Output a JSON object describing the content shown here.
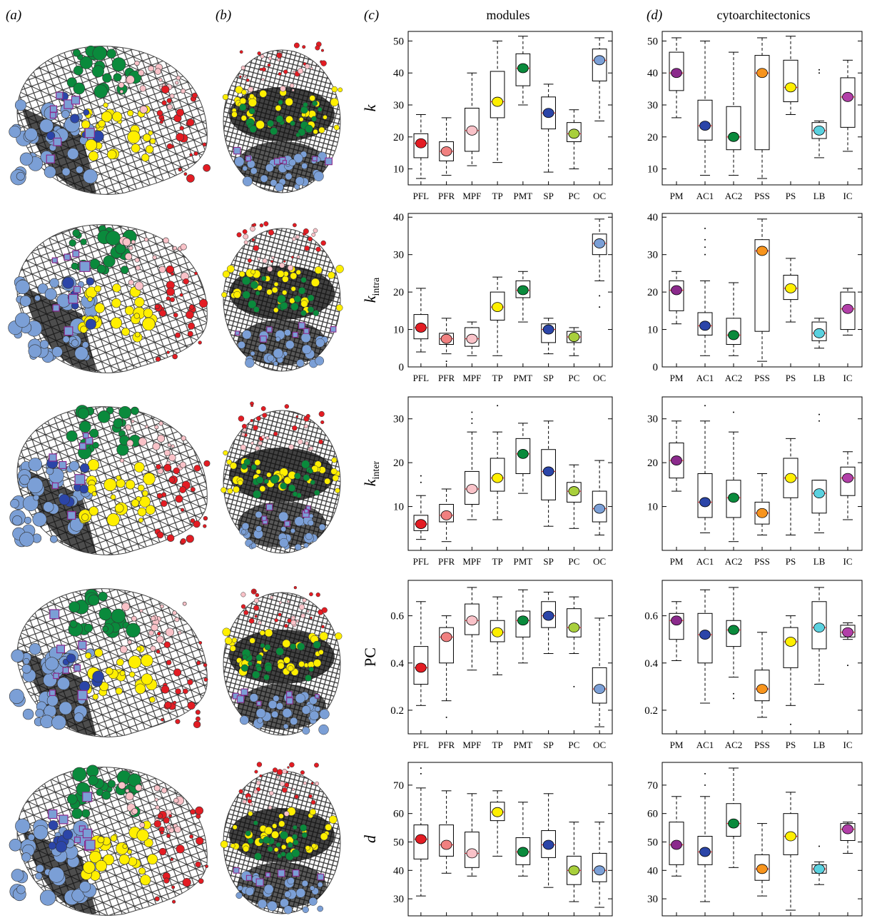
{
  "panel_letters": [
    "(a)",
    "(b)",
    "(c)",
    "(d)"
  ],
  "columns": {
    "c_title": "modules",
    "d_title": "cytoarchitectonics"
  },
  "colors": {
    "PFL": "#e31c23",
    "PFR": "#f08080",
    "MPF": "#f9c2c8",
    "TP": "#ffef00",
    "PMT": "#0a8a3c",
    "SP": "#2b45a8",
    "PC": "#a8cf3c",
    "OC": "#7b9fd6",
    "PM": "#8b2a8c",
    "AC1": "#2b45a8",
    "AC2": "#0a8a3c",
    "PSS": "#f7941d",
    "PS": "#ffef00",
    "LB": "#5ad1df",
    "IC": "#b23fa8",
    "median": "#e31c23"
  },
  "chart_data": [
    {
      "type": "box",
      "panel": "c",
      "row": 0,
      "ylabel": "k",
      "ylabel_sub": "",
      "ylim": [
        5,
        53
      ],
      "yticks": [
        10,
        20,
        30,
        40,
        50
      ],
      "categories": [
        "PFL",
        "PFR",
        "MPF",
        "TP",
        "PMT",
        "SP",
        "PC",
        "OC"
      ],
      "stats": [
        [
          7,
          13.5,
          18,
          21,
          27
        ],
        [
          8,
          12.5,
          15.5,
          18.5,
          26
        ],
        [
          11,
          15.5,
          22,
          29,
          40
        ],
        [
          12,
          26,
          31,
          40.5,
          50
        ],
        [
          30,
          36,
          41.5,
          46,
          51.5
        ],
        [
          9,
          22.5,
          27.5,
          32.5,
          36.5
        ],
        [
          10,
          18.5,
          21,
          24.5,
          28.5
        ],
        [
          25,
          37.5,
          44,
          47.5,
          51
        ]
      ]
    },
    {
      "type": "box",
      "panel": "d",
      "row": 0,
      "ylabel": "",
      "ylabel_sub": "",
      "ylim": [
        5,
        53
      ],
      "yticks": [
        10,
        20,
        30,
        40,
        50
      ],
      "categories": [
        "PM",
        "AC1",
        "AC2",
        "PSS",
        "PS",
        "LB",
        "IC"
      ],
      "stats": [
        [
          26,
          34.5,
          40,
          46.5,
          51
        ],
        [
          8,
          19,
          23.5,
          31.5,
          50
        ],
        [
          8,
          16,
          20,
          29.5,
          46.5
        ],
        [
          7,
          16,
          40,
          45.5,
          51
        ],
        [
          27,
          31,
          35.5,
          44,
          51.5
        ],
        [
          13.5,
          19.5,
          22,
          24.5,
          25
        ],
        [
          15.5,
          23,
          32.5,
          38.5,
          44
        ]
      ],
      "outliers": [
        [],
        [],
        [],
        [],
        [],
        [
          40,
          41
        ],
        []
      ]
    },
    {
      "type": "box",
      "panel": "c",
      "row": 1,
      "ylabel": "k",
      "ylabel_sub": "intra",
      "ylim": [
        0,
        41
      ],
      "yticks": [
        0,
        10,
        20,
        30,
        40
      ],
      "categories": [
        "PFL",
        "PFR",
        "MPF",
        "TP",
        "PMT",
        "SP",
        "PC",
        "OC"
      ],
      "stats": [
        [
          4,
          7.5,
          10.5,
          14,
          21
        ],
        [
          3.5,
          6,
          7.5,
          9,
          13
        ],
        [
          3,
          5.5,
          7.5,
          10.5,
          12
        ],
        [
          3,
          12.5,
          16,
          20,
          24
        ],
        [
          12,
          18.5,
          20.5,
          23,
          25.5
        ],
        [
          3.5,
          6.5,
          10,
          11.5,
          13
        ],
        [
          3,
          6.5,
          8,
          9.5,
          10.5
        ],
        [
          23,
          30,
          33,
          35.5,
          39.5
        ]
      ],
      "outliers": [
        [],
        [
          1.5
        ],
        [],
        [],
        [],
        [],
        [],
        [
          16,
          19
        ]
      ]
    },
    {
      "type": "box",
      "panel": "d",
      "row": 1,
      "ylabel": "",
      "ylabel_sub": "",
      "ylim": [
        0,
        41
      ],
      "yticks": [
        0,
        10,
        20,
        30,
        40
      ],
      "categories": [
        "PM",
        "AC1",
        "AC2",
        "PSS",
        "PS",
        "LB",
        "IC"
      ],
      "stats": [
        [
          11.5,
          15,
          20.5,
          23,
          25.5
        ],
        [
          3,
          8.5,
          11,
          14.5,
          23
        ],
        [
          3,
          6,
          8.5,
          13,
          22.5
        ],
        [
          1.5,
          9.5,
          31,
          34,
          39.5
        ],
        [
          12,
          18,
          21,
          24.5,
          29
        ],
        [
          5,
          7,
          9,
          12,
          13
        ],
        [
          8.5,
          10,
          15.5,
          20,
          21
        ]
      ],
      "outliers": [
        [],
        [
          30,
          32,
          34,
          37
        ],
        [],
        [],
        [],
        [],
        []
      ]
    },
    {
      "type": "box",
      "panel": "c",
      "row": 2,
      "ylabel": "k",
      "ylabel_sub": "inter",
      "ylim": [
        0,
        35
      ],
      "yticks": [
        10,
        20,
        30
      ],
      "categories": [
        "PFL",
        "PFR",
        "MPF",
        "TP",
        "PMT",
        "SP",
        "PC",
        "OC"
      ],
      "stats": [
        [
          2.5,
          4.5,
          6,
          8,
          12.5
        ],
        [
          2,
          6.5,
          8,
          10.5,
          14
        ],
        [
          7,
          10.5,
          14,
          18,
          27
        ],
        [
          7,
          13.5,
          16.5,
          21,
          27
        ],
        [
          13,
          17.5,
          22,
          25.5,
          29
        ],
        [
          5.5,
          11.5,
          18,
          23,
          29.5
        ],
        [
          5,
          11,
          13.5,
          15.5,
          19.5
        ],
        [
          3.5,
          6.5,
          9.5,
          13.5,
          20.5
        ]
      ],
      "outliers": [
        [
          15.5,
          17
        ],
        [],
        [
          29,
          30,
          31.5
        ],
        [
          33
        ],
        [],
        [],
        [],
        []
      ]
    },
    {
      "type": "box",
      "panel": "d",
      "row": 2,
      "ylabel": "",
      "ylabel_sub": "",
      "ylim": [
        0,
        35
      ],
      "yticks": [
        10,
        20,
        30
      ],
      "categories": [
        "PM",
        "AC1",
        "AC2",
        "PSS",
        "PS",
        "LB",
        "IC"
      ],
      "stats": [
        [
          13.5,
          16.5,
          20.5,
          24.5,
          29.5
        ],
        [
          4,
          7.5,
          11,
          17.5,
          29.5
        ],
        [
          2,
          7.5,
          12,
          16,
          27
        ],
        [
          3.5,
          6,
          8.5,
          11,
          17.5
        ],
        [
          3.5,
          12,
          16.5,
          21,
          25.5
        ],
        [
          4,
          8.5,
          13,
          16,
          16
        ],
        [
          7,
          12.5,
          16.5,
          19,
          22.5
        ]
      ],
      "outliers": [
        [],
        [
          33
        ],
        [
          31.5
        ],
        [],
        [],
        [
          29.5,
          31
        ],
        []
      ]
    },
    {
      "type": "box",
      "panel": "c",
      "row": 3,
      "ylabel": "PC",
      "ylabel_sub": "",
      "ylim": [
        0.1,
        0.75
      ],
      "yticks": [
        0.2,
        0.4,
        0.6
      ],
      "categories": [
        "PFL",
        "PFR",
        "MPF",
        "TP",
        "PMT",
        "SP",
        "PC",
        "OC"
      ],
      "stats": [
        [
          0.22,
          0.31,
          0.38,
          0.47,
          0.66
        ],
        [
          0.24,
          0.4,
          0.51,
          0.55,
          0.6
        ],
        [
          0.37,
          0.52,
          0.58,
          0.65,
          0.72
        ],
        [
          0.35,
          0.49,
          0.53,
          0.58,
          0.68
        ],
        [
          0.4,
          0.51,
          0.58,
          0.62,
          0.71
        ],
        [
          0.44,
          0.55,
          0.6,
          0.66,
          0.7
        ],
        [
          0.44,
          0.51,
          0.55,
          0.63,
          0.68
        ],
        [
          0.13,
          0.23,
          0.29,
          0.38,
          0.59
        ]
      ],
      "outliers": [
        [],
        [
          0.17
        ],
        [],
        [],
        [],
        [],
        [
          0.3
        ],
        []
      ]
    },
    {
      "type": "box",
      "panel": "d",
      "row": 3,
      "ylabel": "",
      "ylabel_sub": "",
      "ylim": [
        0.1,
        0.75
      ],
      "yticks": [
        0.2,
        0.4,
        0.6
      ],
      "categories": [
        "PM",
        "AC1",
        "AC2",
        "PSS",
        "PS",
        "LB",
        "IC"
      ],
      "stats": [
        [
          0.41,
          0.5,
          0.58,
          0.61,
          0.66
        ],
        [
          0.23,
          0.4,
          0.52,
          0.61,
          0.71
        ],
        [
          0.34,
          0.47,
          0.54,
          0.58,
          0.72
        ],
        [
          0.17,
          0.24,
          0.29,
          0.37,
          0.53
        ],
        [
          0.22,
          0.38,
          0.49,
          0.55,
          0.6
        ],
        [
          0.31,
          0.46,
          0.55,
          0.66,
          0.72
        ],
        [
          0.5,
          0.51,
          0.53,
          0.56,
          0.57
        ]
      ],
      "outliers": [
        [],
        [],
        [
          0.25,
          0.27
        ],
        [],
        [
          0.14
        ],
        [],
        [
          0.39
        ]
      ]
    },
    {
      "type": "box",
      "panel": "c",
      "row": 4,
      "ylabel": "d",
      "ylabel_sub": "",
      "ylim": [
        24,
        78
      ],
      "yticks": [
        30,
        40,
        50,
        60,
        70
      ],
      "categories": [
        "PFL",
        "PFR",
        "MPF",
        "TP",
        "PMT",
        "SP",
        "PC",
        "OC"
      ],
      "stats": [
        [
          31,
          44,
          51,
          56,
          69
        ],
        [
          39,
          45,
          49,
          56,
          68
        ],
        [
          38,
          41,
          46,
          53.5,
          67
        ],
        [
          45,
          57.5,
          60.5,
          64,
          68
        ],
        [
          38,
          42,
          46.5,
          51.5,
          64
        ],
        [
          34,
          44.5,
          49,
          54,
          67
        ],
        [
          29,
          35,
          40,
          45,
          57
        ],
        [
          27,
          36,
          40,
          46,
          57
        ]
      ],
      "outliers": [
        [
          74,
          76
        ],
        [],
        [],
        [],
        [],
        [],
        [],
        []
      ]
    },
    {
      "type": "box",
      "panel": "d",
      "row": 4,
      "ylabel": "",
      "ylabel_sub": "",
      "ylim": [
        24,
        78
      ],
      "yticks": [
        30,
        40,
        50,
        60,
        70
      ],
      "categories": [
        "PM",
        "AC1",
        "AC2",
        "PSS",
        "PS",
        "LB",
        "IC"
      ],
      "stats": [
        [
          38,
          42,
          49,
          57,
          66
        ],
        [
          29,
          42,
          46.5,
          52,
          66
        ],
        [
          41,
          52,
          56.5,
          63.5,
          76
        ],
        [
          31,
          36.5,
          40.5,
          45.5,
          56.5
        ],
        [
          26,
          45.5,
          52,
          60,
          67.5
        ],
        [
          35,
          39,
          40.5,
          42,
          43
        ],
        [
          46,
          50.5,
          54.5,
          56.5,
          57
        ]
      ],
      "outliers": [
        [],
        [
          70,
          74
        ],
        [],
        [],
        [],
        [
          48.5
        ],
        []
      ]
    }
  ]
}
